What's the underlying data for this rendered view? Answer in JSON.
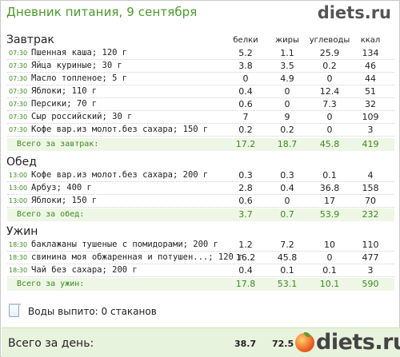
{
  "header": {
    "title": "Дневник питания, 9 сентября",
    "logo": "diets.ru"
  },
  "columns": [
    "белки",
    "жиры",
    "углеводы",
    "ккал"
  ],
  "sections": [
    {
      "title": "Завтрак",
      "rows": [
        {
          "time": "07:30",
          "name": "Пшенная каша; 120 г",
          "p": "5.2",
          "f": "1.1",
          "c": "25.9",
          "k": "134"
        },
        {
          "time": "07:30",
          "name": "Яйца куриные; 30 г",
          "p": "3.8",
          "f": "3.5",
          "c": "0.2",
          "k": "46"
        },
        {
          "time": "07:30",
          "name": "Масло топленое; 5 г",
          "p": "0",
          "f": "4.9",
          "c": "0",
          "k": "44"
        },
        {
          "time": "07:30",
          "name": "Яблоки; 110 г",
          "p": "0.4",
          "f": "0",
          "c": "12.4",
          "k": "51"
        },
        {
          "time": "07:30",
          "name": "Персики; 70 г",
          "p": "0.6",
          "f": "0",
          "c": "7.3",
          "k": "32"
        },
        {
          "time": "07:30",
          "name": "Сыр российский; 30 г",
          "p": "7",
          "f": "9",
          "c": "0",
          "k": "109"
        },
        {
          "time": "07:30",
          "name": "Кофе вар.из молот.без сахара; 150 г",
          "p": "0.2",
          "f": "0.2",
          "c": "0",
          "k": "3"
        }
      ],
      "total": {
        "label": "Всего за завтрак:",
        "p": "17.2",
        "f": "18.7",
        "c": "45.8",
        "k": "419"
      }
    },
    {
      "title": "Обед",
      "rows": [
        {
          "time": "13:00",
          "name": "Кофе вар.из молот.без сахара; 200 г",
          "p": "0.3",
          "f": "0.3",
          "c": "0.1",
          "k": "4"
        },
        {
          "time": "13:00",
          "name": "Арбуз; 400 г",
          "p": "2.8",
          "f": "0.4",
          "c": "36.8",
          "k": "158"
        },
        {
          "time": "13:00",
          "name": "Яблоки; 150 г",
          "p": "0.6",
          "f": "0",
          "c": "17",
          "k": "70"
        }
      ],
      "total": {
        "label": "Всего за обед:",
        "p": "3.7",
        "f": "0.7",
        "c": "53.9",
        "k": "232"
      }
    },
    {
      "title": "Ужин",
      "rows": [
        {
          "time": "18:30",
          "name": "баклажаны тушеные с помидорами; 200 г",
          "p": "1.2",
          "f": "7.2",
          "c": "10",
          "k": "110"
        },
        {
          "time": "18:30",
          "name": "свинина моя обжаренная  и потушен...; 120 г",
          "p": "16.2",
          "f": "45.8",
          "c": "0",
          "k": "477"
        },
        {
          "time": "18:30",
          "name": "Чай без сахара; 200 г",
          "p": "0.4",
          "f": "0.1",
          "c": "0.1",
          "k": "3"
        }
      ],
      "total": {
        "label": "Всего за ужин:",
        "p": "17.8",
        "f": "53.1",
        "c": "10.1",
        "k": "590"
      }
    }
  ],
  "water": {
    "label": "Воды выпито: 0 стаканов",
    "icon": "glass-icon"
  },
  "day_total": {
    "label": "Всего за день:",
    "p": "38.7",
    "f": "72.5"
  },
  "footer_logo": "diets.ru",
  "colors": {
    "accent": "#3b8a1e",
    "title": "#4a9a2a",
    "total_bg": "#eef6e6"
  }
}
